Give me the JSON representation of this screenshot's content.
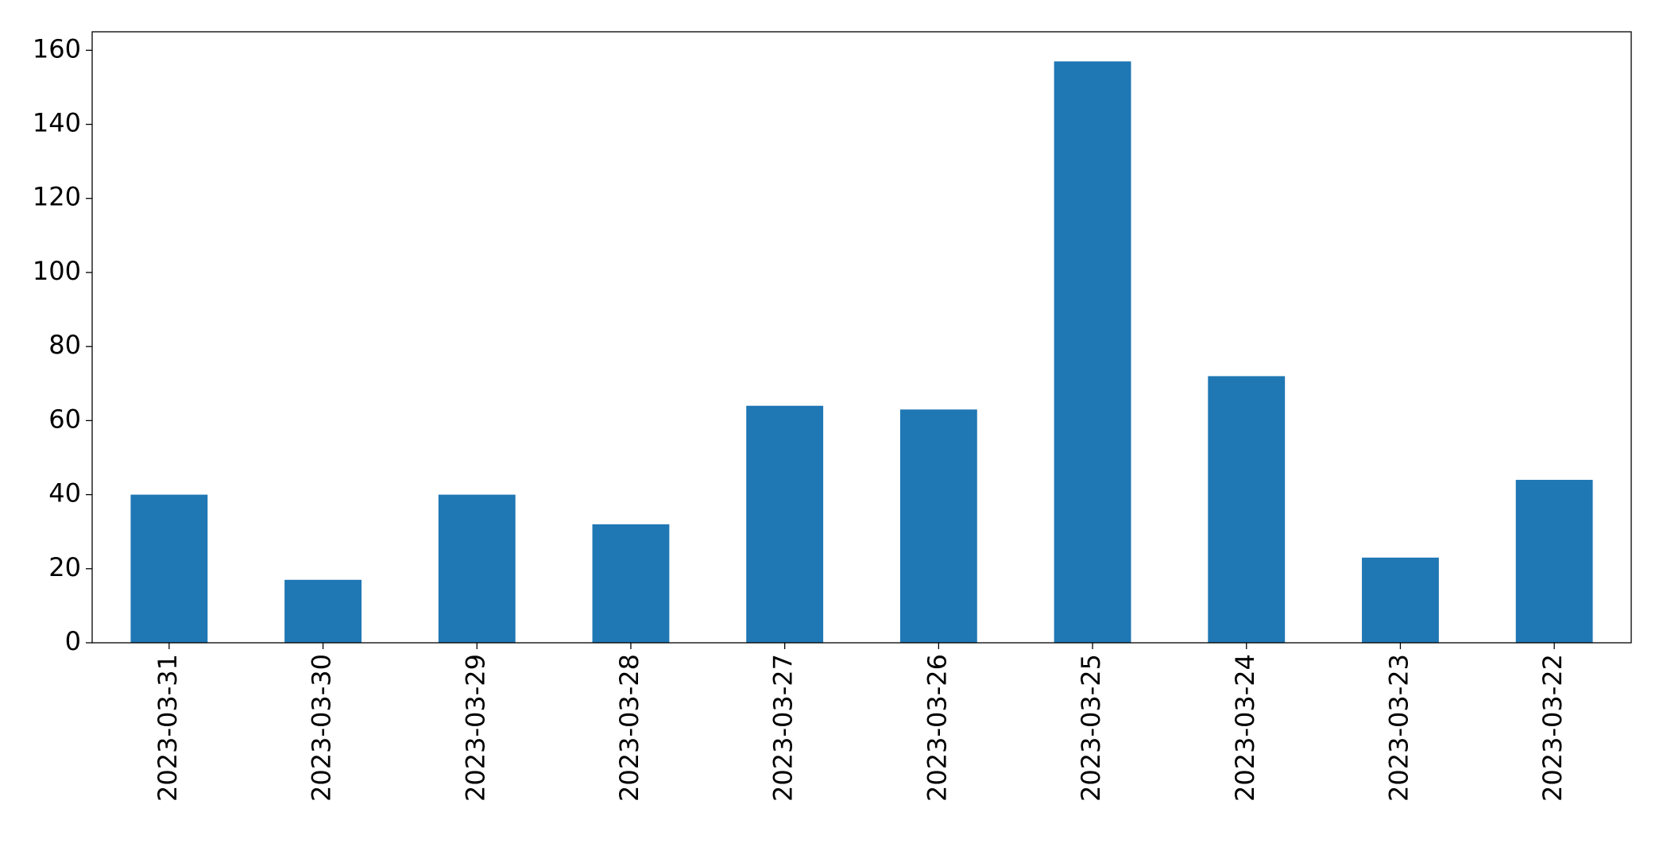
{
  "chart_data": {
    "type": "bar",
    "categories": [
      "2023-03-31",
      "2023-03-30",
      "2023-03-29",
      "2023-03-28",
      "2023-03-27",
      "2023-03-26",
      "2023-03-25",
      "2023-03-24",
      "2023-03-23",
      "2023-03-22"
    ],
    "values": [
      40,
      17,
      40,
      32,
      64,
      63,
      157,
      72,
      23,
      44
    ],
    "color": "#1f77b4",
    "ylim": [
      0,
      165
    ],
    "yticks": [
      0,
      20,
      40,
      60,
      80,
      100,
      120,
      140,
      160
    ],
    "grid": false
  }
}
